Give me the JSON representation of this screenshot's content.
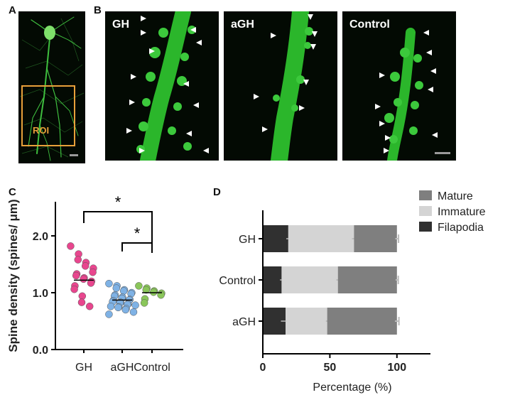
{
  "panels": {
    "a": "A",
    "b": "B",
    "c": "C",
    "d": "D"
  },
  "panel_a": {
    "roi_label": "ROI"
  },
  "panel_b": {
    "titles": [
      "GH",
      "aGH",
      "Control"
    ]
  },
  "colors": {
    "gh": "#e8468e",
    "agh": "#7fb2e5",
    "control": "#8ac65a",
    "mature": "#7f7f7f",
    "immature": "#d4d4d4",
    "filapodia": "#303030"
  },
  "chart_data": [
    {
      "type": "scatter",
      "panel": "C",
      "ylabel": "Spine density (spines/ μm)",
      "ylim": [
        0,
        2.6
      ],
      "yticks": [
        "0.0",
        "1.0",
        "2.0"
      ],
      "categories": [
        "GH",
        "aGH",
        "Control"
      ],
      "series": [
        {
          "category": "GH",
          "mean": 1.22,
          "values": [
            1.82,
            1.68,
            1.58,
            1.53,
            1.47,
            1.43,
            1.36,
            1.33,
            1.3,
            1.26,
            1.24,
            1.2,
            1.17,
            1.12,
            1.06,
            0.94,
            0.83,
            0.76
          ]
        },
        {
          "category": "aGH",
          "mean": 0.87,
          "values": [
            1.16,
            1.12,
            1.08,
            1.05,
            1.03,
            1.0,
            0.98,
            0.96,
            0.94,
            0.92,
            0.9,
            0.88,
            0.87,
            0.86,
            0.84,
            0.83,
            0.82,
            0.8,
            0.79,
            0.78,
            0.76,
            0.75,
            0.74,
            0.72,
            0.7,
            0.66,
            0.62
          ]
        },
        {
          "category": "Control",
          "mean": 1.0,
          "values": [
            1.12,
            1.08,
            1.05,
            1.03,
            1.01,
            0.99,
            0.96,
            0.89,
            0.82
          ]
        }
      ],
      "significance": [
        {
          "pair": [
            "GH",
            "Control"
          ],
          "label": "*"
        },
        {
          "pair": [
            "aGH",
            "Control"
          ],
          "label": "*"
        }
      ]
    },
    {
      "type": "bar",
      "orientation": "horizontal",
      "stacked": true,
      "panel": "D",
      "xlabel": "Percentage (%)",
      "xlim": [
        0,
        125
      ],
      "xticks": [
        "0",
        "50",
        "100"
      ],
      "categories": [
        "GH",
        "Control",
        "aGH"
      ],
      "legend": {
        "position": "top-right",
        "entries": [
          "Mature",
          "Immature",
          "Filapodia"
        ]
      },
      "series": [
        {
          "name": "Filapodia",
          "values": [
            19,
            14,
            17
          ],
          "errors": [
            1.5,
            1.2,
            3.5
          ]
        },
        {
          "name": "Immature",
          "values": [
            49,
            42,
            31
          ],
          "errors": [
            1.5,
            1.2,
            1.0
          ]
        },
        {
          "name": "Mature",
          "values": [
            32,
            44,
            52
          ],
          "errors": [
            1.2,
            1.0,
            1.5
          ]
        }
      ]
    }
  ]
}
